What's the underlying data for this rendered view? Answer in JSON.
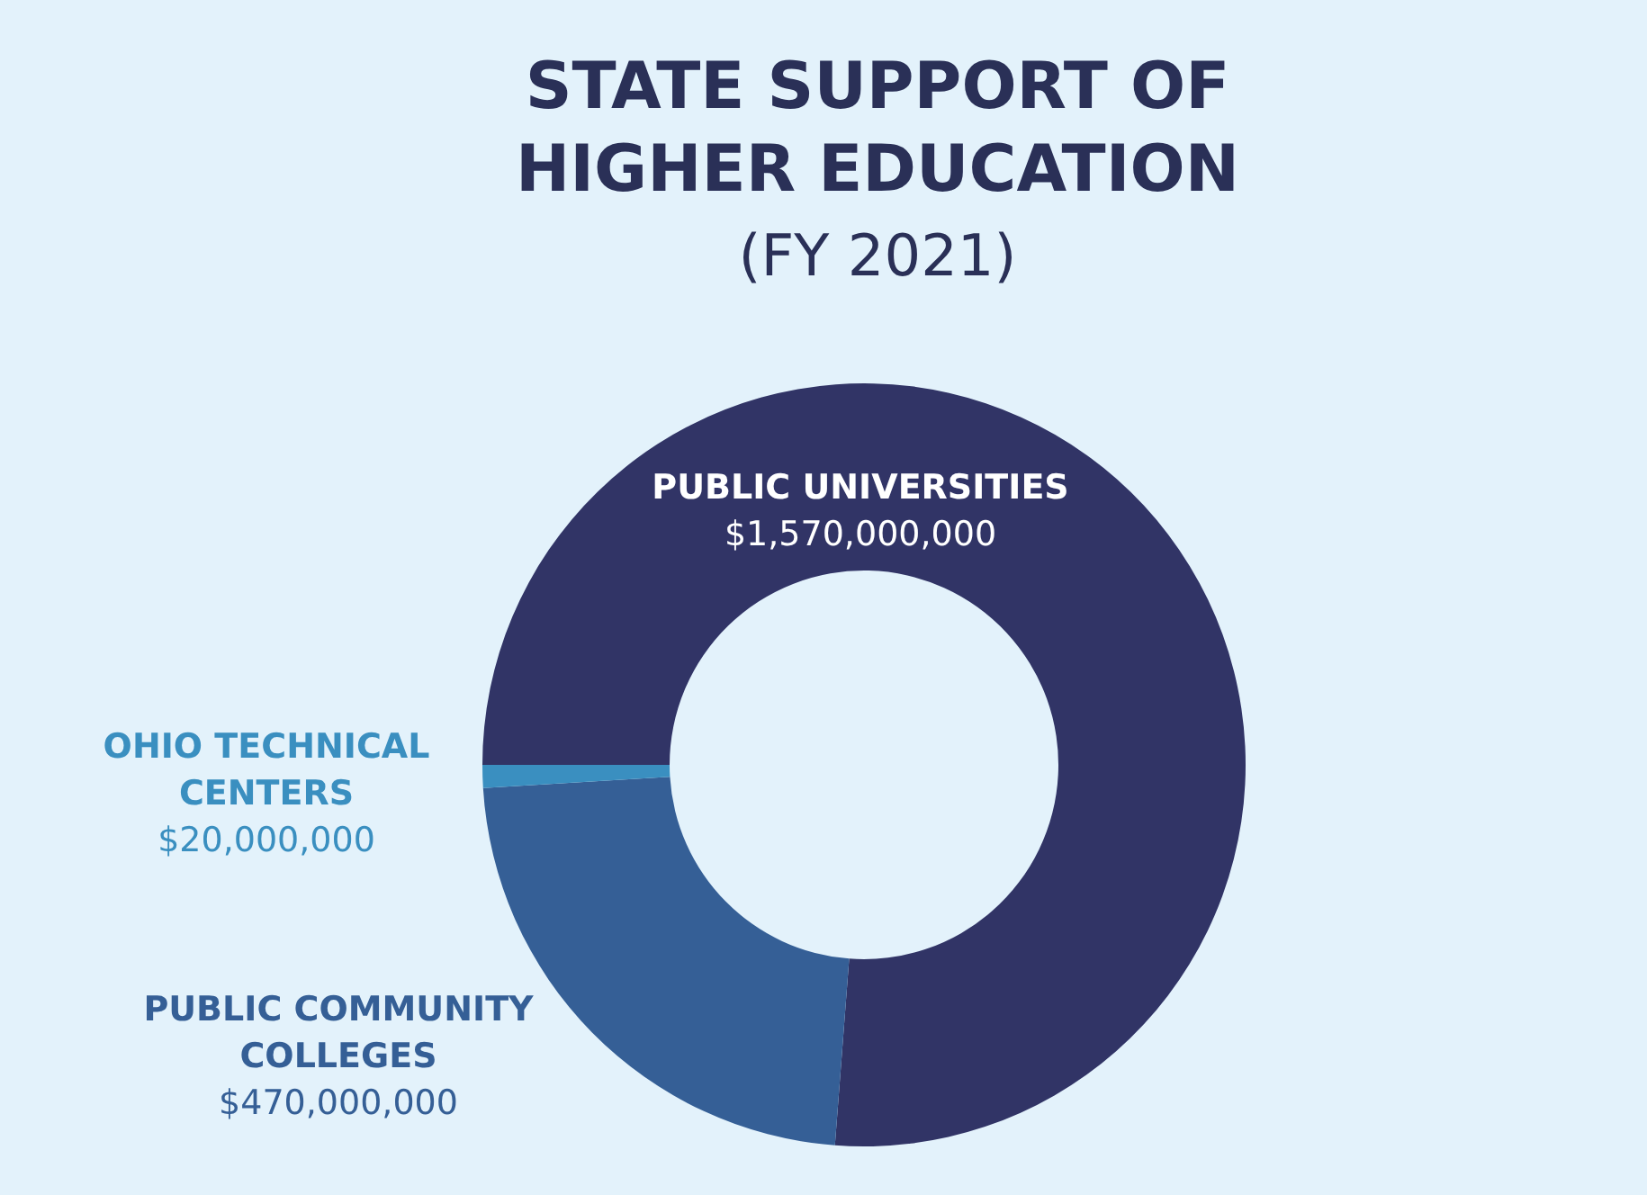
{
  "chart_data": {
    "type": "donut",
    "title": "STATE SUPPORT OF HIGHER EDUCATION",
    "subtitle": "(FY 2021)",
    "categories": [
      "PUBLIC UNIVERSITIES",
      "PUBLIC COMMUNITY COLLEGES",
      "OHIO TECHNICAL CENTERS"
    ],
    "values": [
      1570000000,
      470000000,
      20000000
    ],
    "value_labels": [
      "$1,570,000,000",
      "$470,000,000",
      "$20,000,000"
    ],
    "colors": [
      "#313466",
      "#355f96",
      "#3a8fc0"
    ]
  }
}
